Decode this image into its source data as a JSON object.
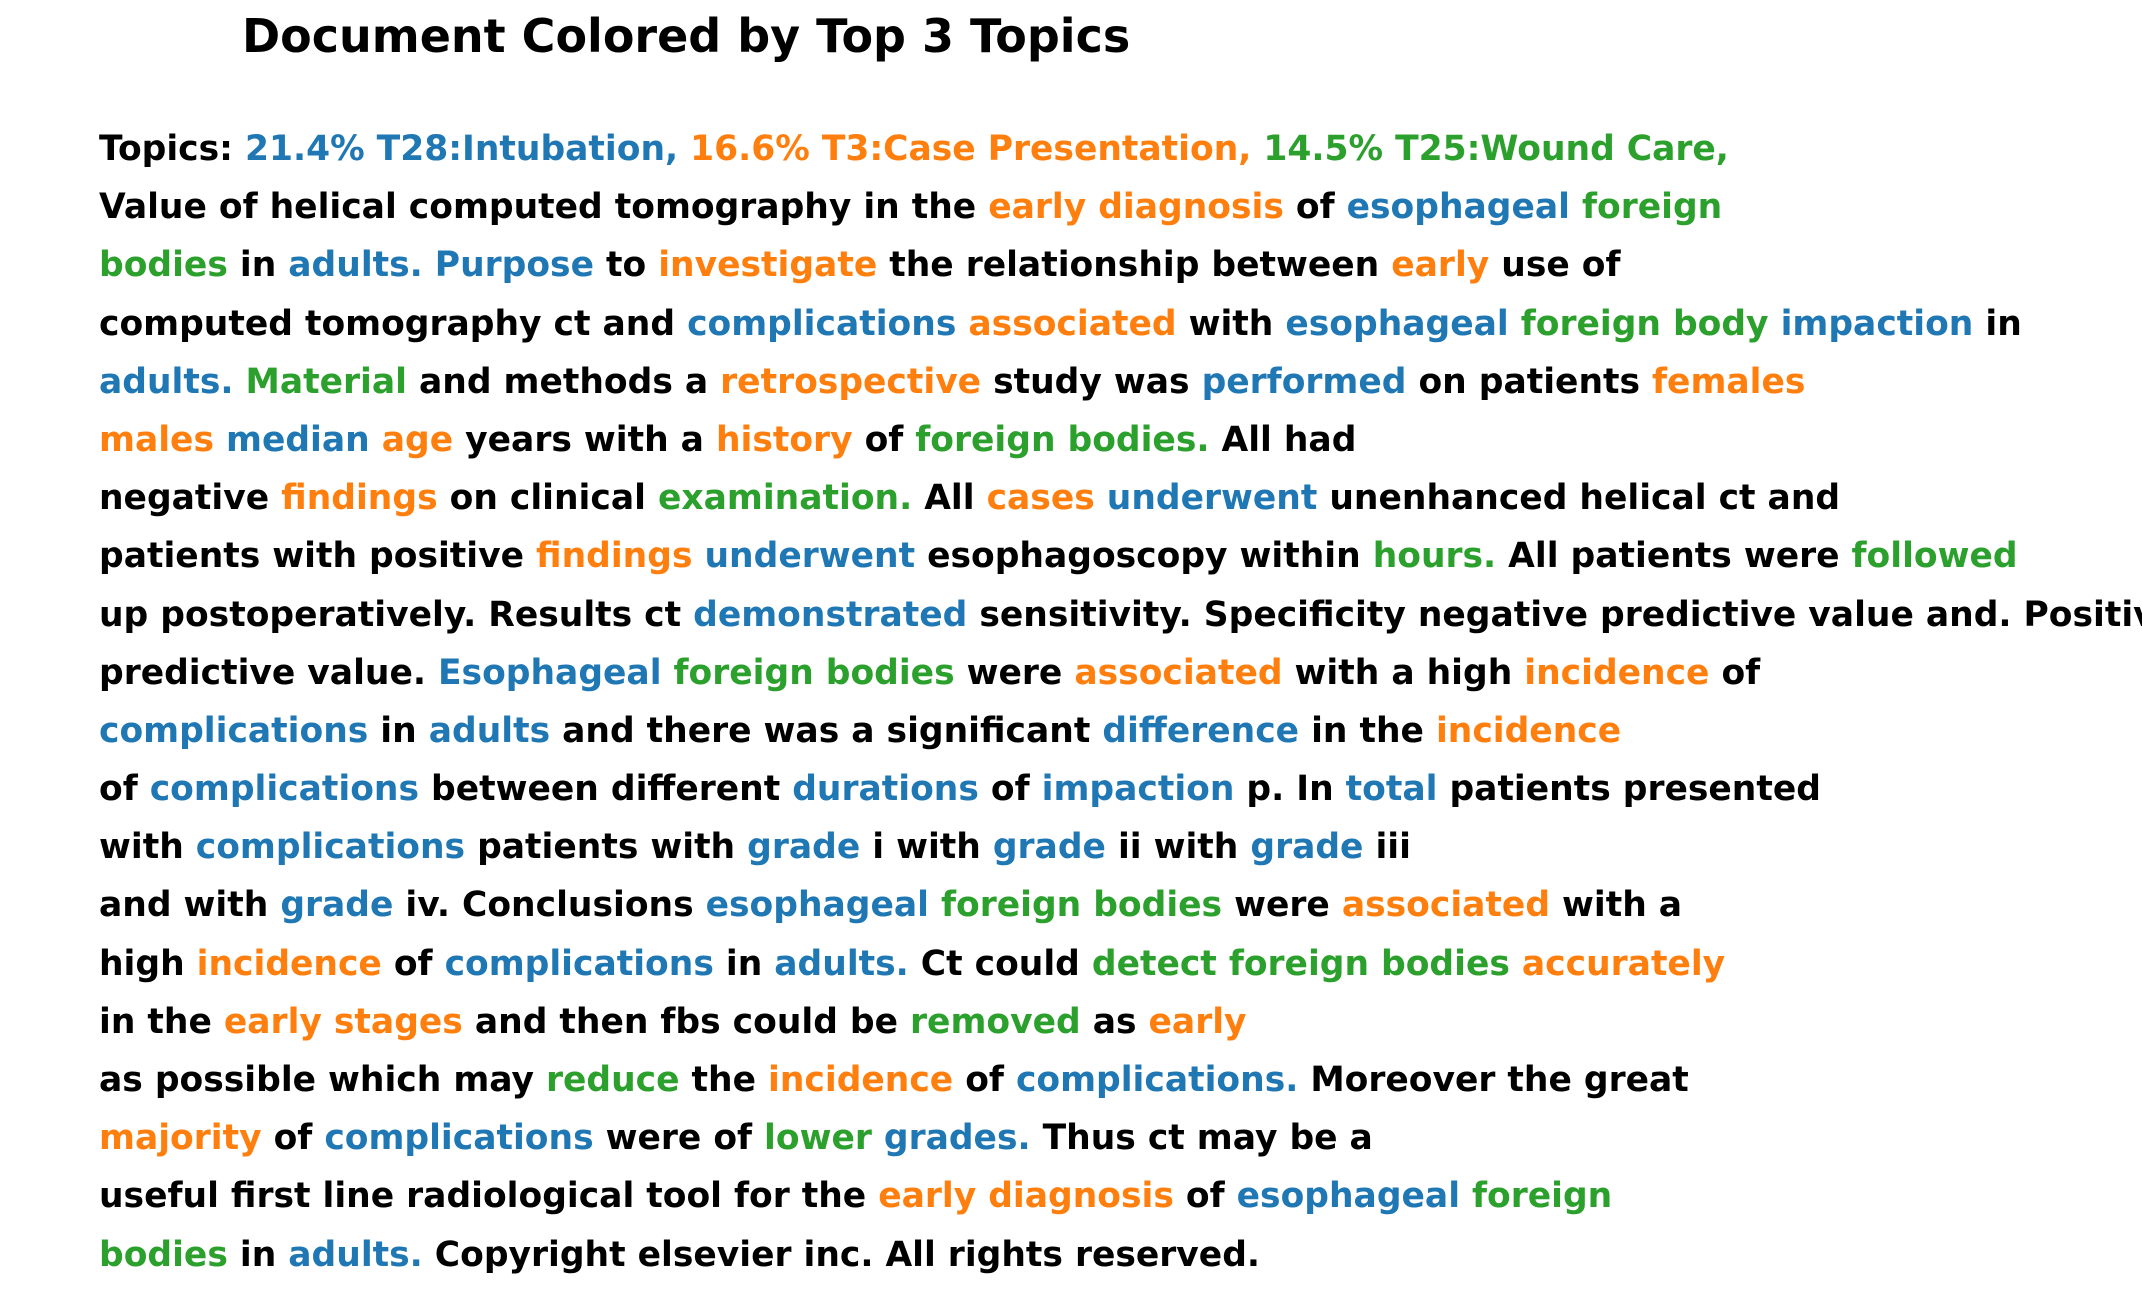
{
  "title": "Document Colored by Top 3 Topics",
  "colors": {
    "plain": "#000000",
    "topic_0": "#1f77b4",
    "topic_1": "#ff7f0e",
    "topic_2": "#2ca02c"
  },
  "lines": [
    [
      [
        "Topics: ",
        "plain"
      ],
      [
        "21.4% T28:Intubation, ",
        "t0"
      ],
      [
        "16.6% T3:Case Presentation, ",
        "t1"
      ],
      [
        "14.5% T25:Wound Care,",
        "t2"
      ]
    ],
    [
      [
        "Value of helical computed tomography in the ",
        "plain"
      ],
      [
        "early diagnosis",
        "t1"
      ],
      [
        " of ",
        "plain"
      ],
      [
        "esophageal",
        "t0"
      ],
      [
        " ",
        "plain"
      ],
      [
        "foreign",
        "t2"
      ]
    ],
    [
      [
        "bodies",
        "t2"
      ],
      [
        " in ",
        "plain"
      ],
      [
        "adults.",
        "t0"
      ],
      [
        " ",
        "plain"
      ],
      [
        "Purpose",
        "t0"
      ],
      [
        " to ",
        "plain"
      ],
      [
        "investigate",
        "t1"
      ],
      [
        " the relationship between ",
        "plain"
      ],
      [
        "early",
        "t1"
      ],
      [
        " use of",
        "plain"
      ]
    ],
    [
      [
        "computed tomography ct and ",
        "plain"
      ],
      [
        "complications",
        "t0"
      ],
      [
        " ",
        "plain"
      ],
      [
        "associated",
        "t1"
      ],
      [
        " with ",
        "plain"
      ],
      [
        "esophageal",
        "t0"
      ],
      [
        " ",
        "plain"
      ],
      [
        "foreign body",
        "t2"
      ],
      [
        " ",
        "plain"
      ],
      [
        "impaction",
        "t0"
      ],
      [
        " in",
        "plain"
      ]
    ],
    [
      [
        "adults.",
        "t0"
      ],
      [
        " ",
        "plain"
      ],
      [
        "Material",
        "t2"
      ],
      [
        " and methods a ",
        "plain"
      ],
      [
        "retrospective",
        "t1"
      ],
      [
        " study was ",
        "plain"
      ],
      [
        "performed",
        "t0"
      ],
      [
        " on patients ",
        "plain"
      ],
      [
        "females",
        "t1"
      ]
    ],
    [
      [
        "males",
        "t1"
      ],
      [
        " ",
        "plain"
      ],
      [
        "median",
        "t0"
      ],
      [
        " ",
        "plain"
      ],
      [
        "age",
        "t1"
      ],
      [
        " years with a ",
        "plain"
      ],
      [
        "history",
        "t1"
      ],
      [
        " of ",
        "plain"
      ],
      [
        "foreign bodies.",
        "t2"
      ],
      [
        " All had",
        "plain"
      ]
    ],
    [
      [
        "negative ",
        "plain"
      ],
      [
        "findings",
        "t1"
      ],
      [
        " on clinical ",
        "plain"
      ],
      [
        "examination.",
        "t2"
      ],
      [
        " All ",
        "plain"
      ],
      [
        "cases",
        "t1"
      ],
      [
        " ",
        "plain"
      ],
      [
        "underwent",
        "t0"
      ],
      [
        " unenhanced helical ct and",
        "plain"
      ]
    ],
    [
      [
        "patients with positive ",
        "plain"
      ],
      [
        "findings",
        "t1"
      ],
      [
        " ",
        "plain"
      ],
      [
        "underwent",
        "t0"
      ],
      [
        " esophagoscopy within ",
        "plain"
      ],
      [
        "hours.",
        "t2"
      ],
      [
        " All patients were ",
        "plain"
      ],
      [
        "followed",
        "t2"
      ]
    ],
    [
      [
        "up postoperatively. Results ct ",
        "plain"
      ],
      [
        "demonstrated",
        "t0"
      ],
      [
        " sensitivity. Specificity negative predictive value and. Positive",
        "plain"
      ]
    ],
    [
      [
        "predictive value. ",
        "plain"
      ],
      [
        "Esophageal",
        "t0"
      ],
      [
        " ",
        "plain"
      ],
      [
        "foreign bodies",
        "t2"
      ],
      [
        " were ",
        "plain"
      ],
      [
        "associated",
        "t1"
      ],
      [
        " with a high ",
        "plain"
      ],
      [
        "incidence",
        "t1"
      ],
      [
        " of",
        "plain"
      ]
    ],
    [
      [
        "complications",
        "t0"
      ],
      [
        " in ",
        "plain"
      ],
      [
        "adults",
        "t0"
      ],
      [
        " and there was a significant ",
        "plain"
      ],
      [
        "difference",
        "t0"
      ],
      [
        " in the ",
        "plain"
      ],
      [
        "incidence",
        "t1"
      ]
    ],
    [
      [
        "of ",
        "plain"
      ],
      [
        "complications",
        "t0"
      ],
      [
        " between different ",
        "plain"
      ],
      [
        "durations",
        "t0"
      ],
      [
        " of ",
        "plain"
      ],
      [
        "impaction",
        "t0"
      ],
      [
        " p. In ",
        "plain"
      ],
      [
        "total",
        "t0"
      ],
      [
        " patients presented",
        "plain"
      ]
    ],
    [
      [
        "with ",
        "plain"
      ],
      [
        "complications",
        "t0"
      ],
      [
        " patients with ",
        "plain"
      ],
      [
        "grade",
        "t0"
      ],
      [
        " i with ",
        "plain"
      ],
      [
        "grade",
        "t0"
      ],
      [
        " ii with ",
        "plain"
      ],
      [
        "grade",
        "t0"
      ],
      [
        " iii",
        "plain"
      ]
    ],
    [
      [
        "and with ",
        "plain"
      ],
      [
        "grade",
        "t0"
      ],
      [
        " iv. Conclusions ",
        "plain"
      ],
      [
        "esophageal",
        "t0"
      ],
      [
        " ",
        "plain"
      ],
      [
        "foreign bodies",
        "t2"
      ],
      [
        " were ",
        "plain"
      ],
      [
        "associated",
        "t1"
      ],
      [
        " with a",
        "plain"
      ]
    ],
    [
      [
        "high ",
        "plain"
      ],
      [
        "incidence",
        "t1"
      ],
      [
        " of ",
        "plain"
      ],
      [
        "complications",
        "t0"
      ],
      [
        " in ",
        "plain"
      ],
      [
        "adults.",
        "t0"
      ],
      [
        " Ct could ",
        "plain"
      ],
      [
        "detect foreign bodies",
        "t2"
      ],
      [
        " ",
        "plain"
      ],
      [
        "accurately",
        "t1"
      ]
    ],
    [
      [
        "in the ",
        "plain"
      ],
      [
        "early stages",
        "t1"
      ],
      [
        " and then fbs could be ",
        "plain"
      ],
      [
        "removed",
        "t2"
      ],
      [
        " as ",
        "plain"
      ],
      [
        "early",
        "t1"
      ]
    ],
    [
      [
        "as possible which may ",
        "plain"
      ],
      [
        "reduce",
        "t2"
      ],
      [
        " the ",
        "plain"
      ],
      [
        "incidence",
        "t1"
      ],
      [
        " of ",
        "plain"
      ],
      [
        "complications.",
        "t0"
      ],
      [
        " Moreover the great",
        "plain"
      ]
    ],
    [
      [
        "majority",
        "t1"
      ],
      [
        " of ",
        "plain"
      ],
      [
        "complications",
        "t0"
      ],
      [
        " were of ",
        "plain"
      ],
      [
        "lower",
        "t2"
      ],
      [
        " ",
        "plain"
      ],
      [
        "grades.",
        "t0"
      ],
      [
        " Thus ct may be a",
        "plain"
      ]
    ],
    [
      [
        "useful first line radiological tool for the ",
        "plain"
      ],
      [
        "early diagnosis",
        "t1"
      ],
      [
        " of ",
        "plain"
      ],
      [
        "esophageal",
        "t0"
      ],
      [
        " ",
        "plain"
      ],
      [
        "foreign",
        "t2"
      ]
    ],
    [
      [
        "bodies",
        "t2"
      ],
      [
        " in ",
        "plain"
      ],
      [
        "adults.",
        "t0"
      ],
      [
        " Copyright elsevier inc. All rights reserved.",
        "plain"
      ]
    ]
  ]
}
